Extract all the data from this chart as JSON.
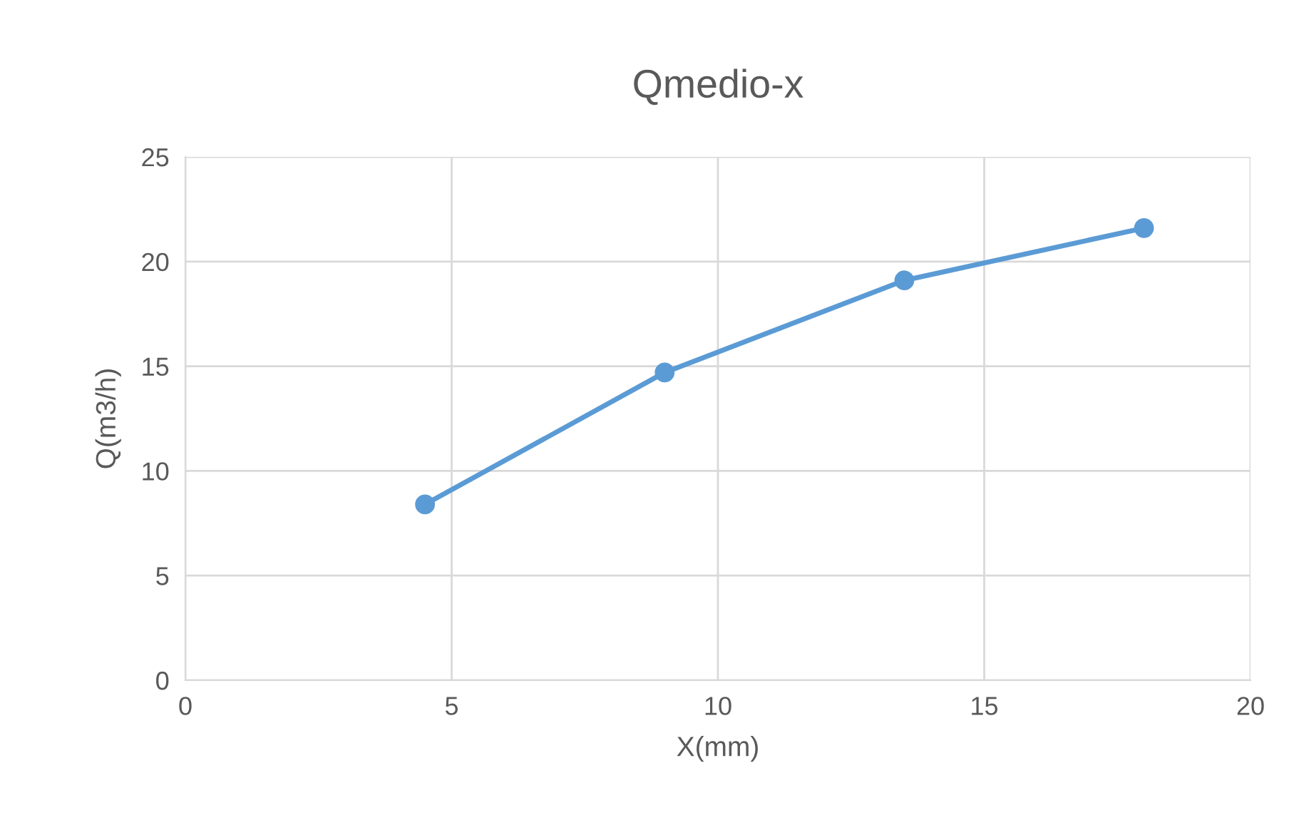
{
  "chart_data": {
    "type": "line",
    "title": "Qmedio-x",
    "xlabel": "X(mm)",
    "ylabel": "Q(m3/h)",
    "x": [
      4.5,
      9,
      13.5,
      18
    ],
    "series": [
      {
        "color": "#5b9bd5",
        "values": [
          8.4,
          14.7,
          19.1,
          21.6
        ]
      }
    ],
    "xlim": [
      0,
      20
    ],
    "xticks": [
      0,
      5,
      10,
      15,
      20
    ],
    "ylim": [
      0,
      25
    ],
    "yticks": [
      0,
      5,
      10,
      15,
      20,
      25
    ],
    "grid": true,
    "marker": "circle",
    "line_style": "solid",
    "legend": false
  }
}
